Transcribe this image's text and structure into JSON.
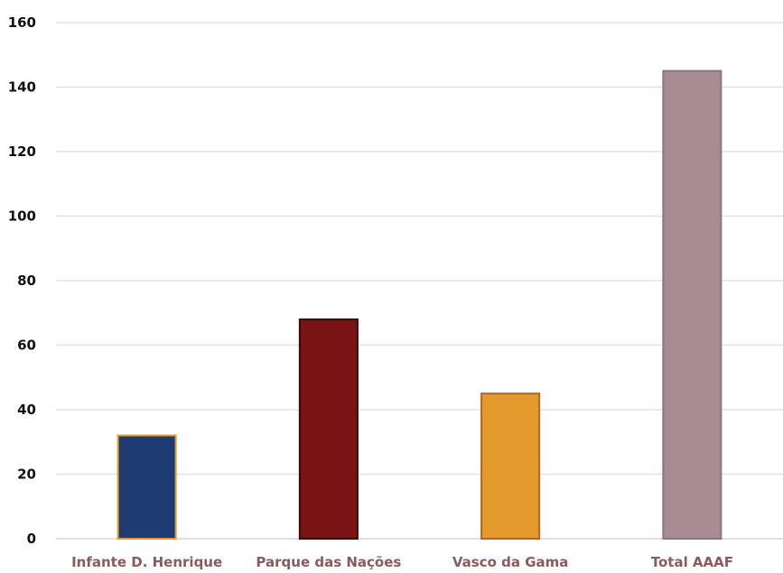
{
  "chart_data": {
    "type": "bar",
    "title": "",
    "xlabel": "",
    "ylabel": "",
    "categories": [
      "Infante D. Henrique",
      "Parque das Nações",
      "Vasco da Gama",
      "Total AAAF"
    ],
    "values": [
      32,
      68,
      45,
      145
    ],
    "colors": [
      "#1f3b73",
      "#7a1414",
      "#e39a2a",
      "#a88c94"
    ],
    "border_colors": [
      "#e39a2a",
      "#3a0606",
      "#b5651a",
      "#8e737b"
    ],
    "ylim": [
      0,
      160
    ],
    "yticks": [
      0,
      20,
      40,
      60,
      80,
      100,
      120,
      140,
      160
    ],
    "grid": true,
    "legend": "none"
  }
}
